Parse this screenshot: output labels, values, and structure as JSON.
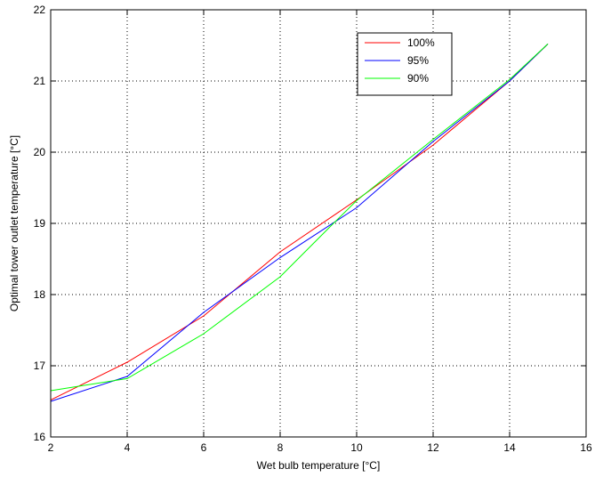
{
  "chart_data": {
    "type": "line",
    "title": "",
    "xlabel": "Wet bulb temperature [°C]",
    "ylabel": "Optimal tower outlet temperature [°C]",
    "xlim": [
      2,
      16
    ],
    "ylim": [
      16,
      22
    ],
    "xticks": [
      2,
      4,
      6,
      8,
      10,
      12,
      14,
      16
    ],
    "yticks": [
      16,
      17,
      18,
      19,
      20,
      21,
      22
    ],
    "grid": "dotted",
    "legend_position": "top-right",
    "series": [
      {
        "name": "100%",
        "color": "#ff0000",
        "x": [
          2,
          4,
          6,
          8,
          10,
          12,
          14,
          15
        ],
        "y": [
          16.52,
          17.05,
          17.7,
          18.6,
          19.33,
          20.1,
          21.0,
          21.52
        ]
      },
      {
        "name": "95%",
        "color": "#0000ff",
        "x": [
          2,
          4,
          6,
          8,
          10,
          12,
          14,
          15
        ],
        "y": [
          16.5,
          16.85,
          17.75,
          18.52,
          19.22,
          20.15,
          21.0,
          21.52
        ]
      },
      {
        "name": "90%",
        "color": "#00ff00",
        "x": [
          2,
          4,
          6,
          8,
          9.3,
          10,
          12,
          14,
          15
        ],
        "y": [
          16.65,
          16.82,
          17.45,
          18.25,
          18.95,
          19.32,
          20.18,
          21.02,
          21.52
        ]
      }
    ]
  }
}
